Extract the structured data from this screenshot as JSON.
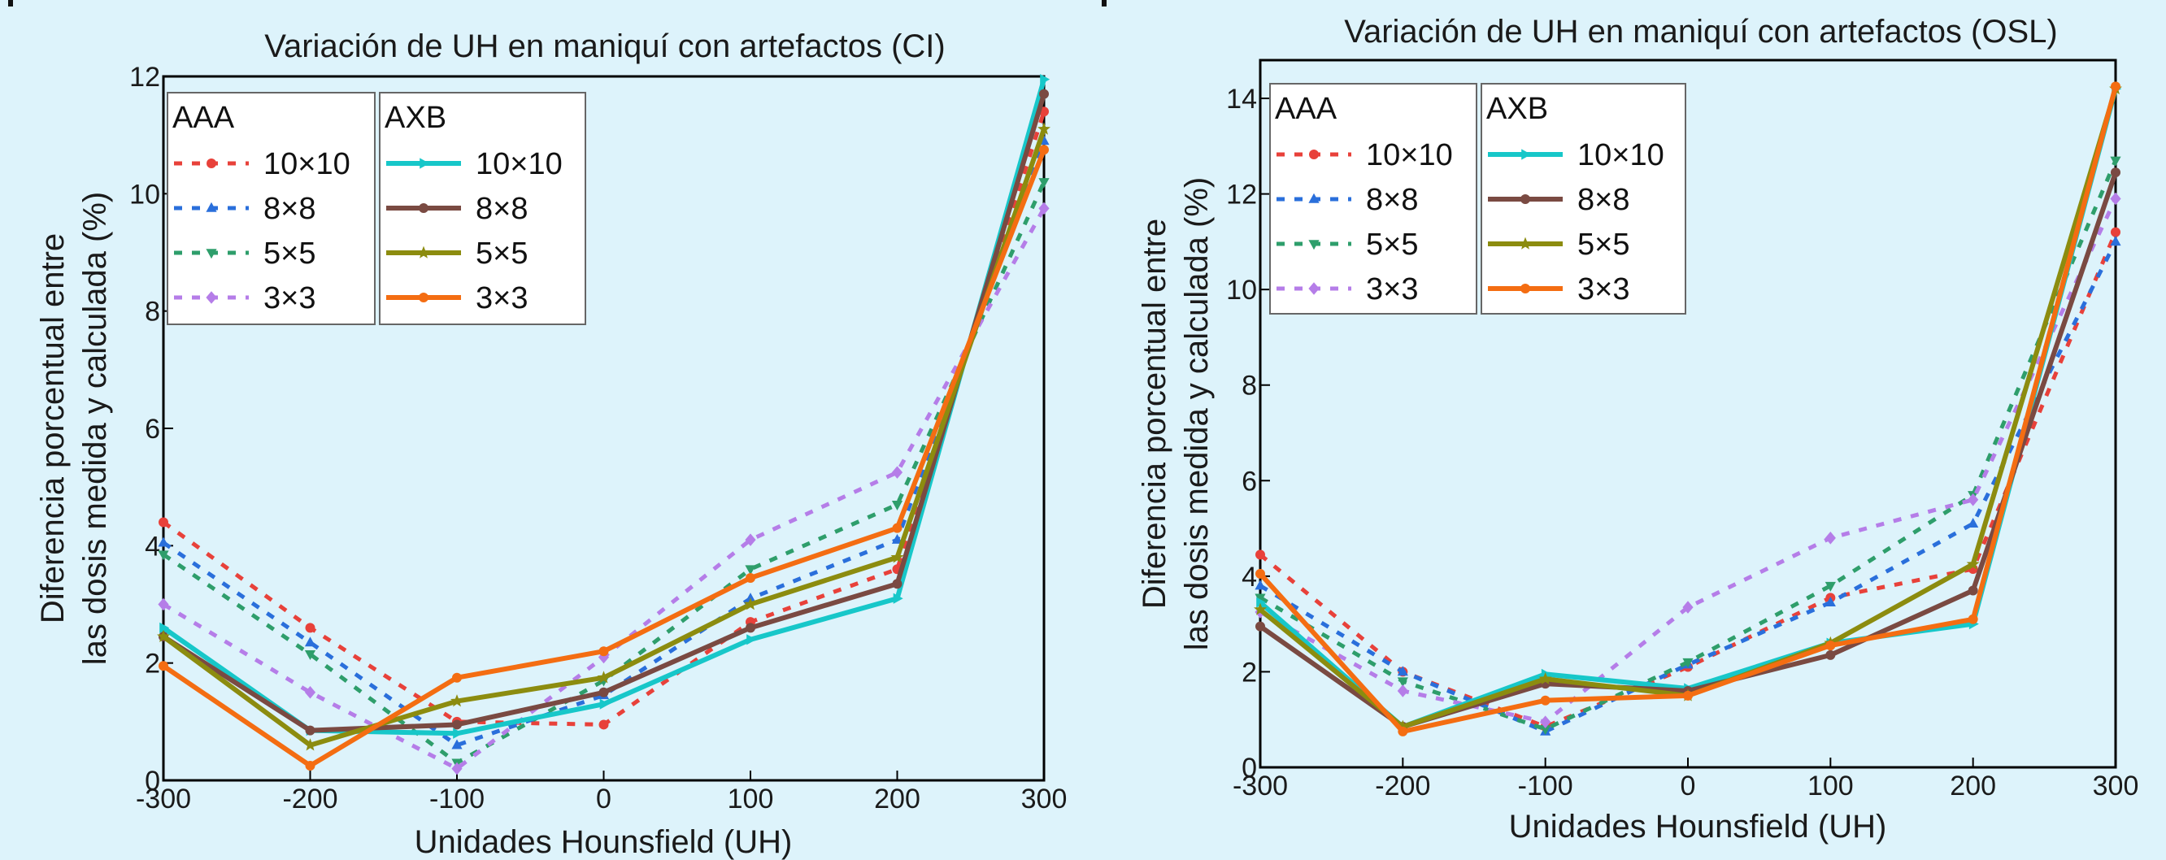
{
  "chart_data": [
    {
      "type": "line",
      "title": "Variación de UH en maniquí con artefactos (CI)",
      "xlabel": "Unidades Hounsfield (UH)",
      "ylabel_lines": [
        "Diferencia porcentual entre",
        "las dosis medida y calculada (%)"
      ],
      "xlim": [
        -300,
        300
      ],
      "ylim": [
        0,
        12
      ],
      "x": [
        -300,
        -200,
        -100,
        0,
        100,
        200,
        300
      ],
      "x_ticks": [
        -300,
        -200,
        -100,
        0,
        100,
        200,
        300
      ],
      "x_tick_labels": [
        "-300",
        "-200",
        "-100",
        "0",
        "100",
        "200",
        "300"
      ],
      "y_ticks": [
        0,
        2,
        4,
        6,
        8,
        10,
        12
      ],
      "y_tick_labels": [
        "0",
        "2",
        "4",
        "6",
        "8",
        "10",
        "12"
      ],
      "legend_placement": "top-left",
      "legend_groups": [
        {
          "heading": "AAA",
          "series": [
            "AAA 10×10",
            "AAA 8×8",
            "AAA 5×5",
            "AAA 3×3"
          ]
        },
        {
          "heading": "AXB",
          "series": [
            "AXB 10×10",
            "AXB 8×8",
            "AXB 5×5",
            "AXB 3×3"
          ]
        }
      ],
      "series": [
        {
          "name": "AAA 10×10",
          "label": "10×10",
          "group": "AAA",
          "color": "#e8413a",
          "dash": "dotted",
          "marker": "circle",
          "values": [
            4.4,
            2.6,
            1.0,
            0.95,
            2.7,
            3.6,
            11.4
          ]
        },
        {
          "name": "AAA 8×8",
          "label": "8×8",
          "group": "AAA",
          "color": "#2a6fdb",
          "dash": "dotted",
          "marker": "triangle-up",
          "values": [
            4.05,
            2.35,
            0.6,
            1.45,
            3.1,
            4.1,
            10.9
          ]
        },
        {
          "name": "AAA 5×5",
          "label": "5×5",
          "group": "AAA",
          "color": "#2e9e6b",
          "dash": "dotted",
          "marker": "triangle-down",
          "values": [
            3.85,
            2.15,
            0.3,
            1.7,
            3.6,
            4.7,
            10.2
          ]
        },
        {
          "name": "AAA 3×3",
          "label": "3×3",
          "group": "AAA",
          "color": "#b57de8",
          "dash": "dotted",
          "marker": "diamond",
          "values": [
            3.0,
            1.5,
            0.2,
            2.1,
            4.1,
            5.25,
            9.75
          ]
        },
        {
          "name": "AXB 10×10",
          "label": "10×10",
          "group": "AXB",
          "color": "#17c7c9",
          "dash": "solid",
          "marker": "triangle-right",
          "values": [
            2.6,
            0.85,
            0.8,
            1.3,
            2.4,
            3.1,
            11.95
          ]
        },
        {
          "name": "AXB 8×8",
          "label": "8×8",
          "group": "AXB",
          "color": "#7a4a42",
          "dash": "solid",
          "marker": "circle",
          "values": [
            2.45,
            0.85,
            0.95,
            1.5,
            2.6,
            3.35,
            11.7
          ]
        },
        {
          "name": "AXB 5×5",
          "label": "5×5",
          "group": "AXB",
          "color": "#8c8c0f",
          "dash": "solid",
          "marker": "star",
          "values": [
            2.45,
            0.6,
            1.35,
            1.75,
            3.0,
            3.8,
            11.1
          ]
        },
        {
          "name": "AXB 3×3",
          "label": "3×3",
          "group": "AXB",
          "color": "#f46d12",
          "dash": "solid",
          "marker": "circle",
          "values": [
            1.95,
            0.25,
            1.75,
            2.2,
            3.45,
            4.3,
            10.75
          ]
        }
      ]
    },
    {
      "type": "line",
      "title": "Variación de UH en maniquí con artefactos (OSL)",
      "xlabel": "Unidades Hounsfield (UH)",
      "ylabel_lines": [
        "Diferencia porcentual entre",
        "las dosis medida y calculada (%)"
      ],
      "xlim": [
        -300,
        300
      ],
      "ylim": [
        0,
        14.8
      ],
      "x": [
        -300,
        -200,
        -100,
        0,
        100,
        200,
        300
      ],
      "x_ticks": [
        -300,
        -200,
        -100,
        0,
        100,
        200,
        300
      ],
      "x_tick_labels": [
        "-300",
        "-200",
        "-100",
        "0",
        "100",
        "200",
        "300"
      ],
      "y_ticks": [
        0,
        2,
        4,
        6,
        8,
        10,
        12,
        14
      ],
      "y_tick_labels": [
        "0",
        "2",
        "4",
        "6",
        "8",
        "10",
        "12",
        "14"
      ],
      "legend_placement": "top-left",
      "legend_groups": [
        {
          "heading": "AAA",
          "series": [
            "AAA 10×10",
            "AAA 8×8",
            "AAA 5×5",
            "AAA 3×3"
          ]
        },
        {
          "heading": "AXB",
          "series": [
            "AXB 10×10",
            "AXB 8×8",
            "AXB 5×5",
            "AXB 3×3"
          ]
        }
      ],
      "series": [
        {
          "name": "AAA 10×10",
          "label": "10×10",
          "group": "AAA",
          "color": "#e8413a",
          "dash": "dotted",
          "marker": "circle",
          "values": [
            4.45,
            2.0,
            0.85,
            2.1,
            3.55,
            4.15,
            11.2
          ]
        },
        {
          "name": "AAA 8×8",
          "label": "8×8",
          "group": "AAA",
          "color": "#2a6fdb",
          "dash": "dotted",
          "marker": "triangle-up",
          "values": [
            3.8,
            2.0,
            0.75,
            2.15,
            3.45,
            5.1,
            11.0
          ]
        },
        {
          "name": "AAA 5×5",
          "label": "5×5",
          "group": "AAA",
          "color": "#2e9e6b",
          "dash": "dotted",
          "marker": "triangle-down",
          "values": [
            3.55,
            1.8,
            0.8,
            2.2,
            3.8,
            5.7,
            12.7
          ]
        },
        {
          "name": "AAA 3×3",
          "label": "3×3",
          "group": "AAA",
          "color": "#b57de8",
          "dash": "dotted",
          "marker": "diamond",
          "values": [
            3.25,
            1.6,
            0.95,
            3.35,
            4.8,
            5.6,
            11.9
          ]
        },
        {
          "name": "AXB 10×10",
          "label": "10×10",
          "group": "AXB",
          "color": "#17c7c9",
          "dash": "solid",
          "marker": "triangle-right",
          "values": [
            3.45,
            0.85,
            1.95,
            1.65,
            2.6,
            3.0,
            14.2
          ]
        },
        {
          "name": "AXB 8×8",
          "label": "8×8",
          "group": "AXB",
          "color": "#7a4a42",
          "dash": "solid",
          "marker": "circle",
          "values": [
            2.95,
            0.85,
            1.75,
            1.6,
            2.35,
            3.7,
            12.45
          ]
        },
        {
          "name": "AXB 5×5",
          "label": "5×5",
          "group": "AXB",
          "color": "#8c8c0f",
          "dash": "solid",
          "marker": "star",
          "values": [
            3.3,
            0.85,
            1.85,
            1.5,
            2.6,
            4.25,
            14.2
          ]
        },
        {
          "name": "AXB 3×3",
          "label": "3×3",
          "group": "AXB",
          "color": "#f46d12",
          "dash": "solid",
          "marker": "circle",
          "values": [
            4.05,
            0.75,
            1.4,
            1.5,
            2.55,
            3.1,
            14.25
          ]
        }
      ]
    }
  ]
}
